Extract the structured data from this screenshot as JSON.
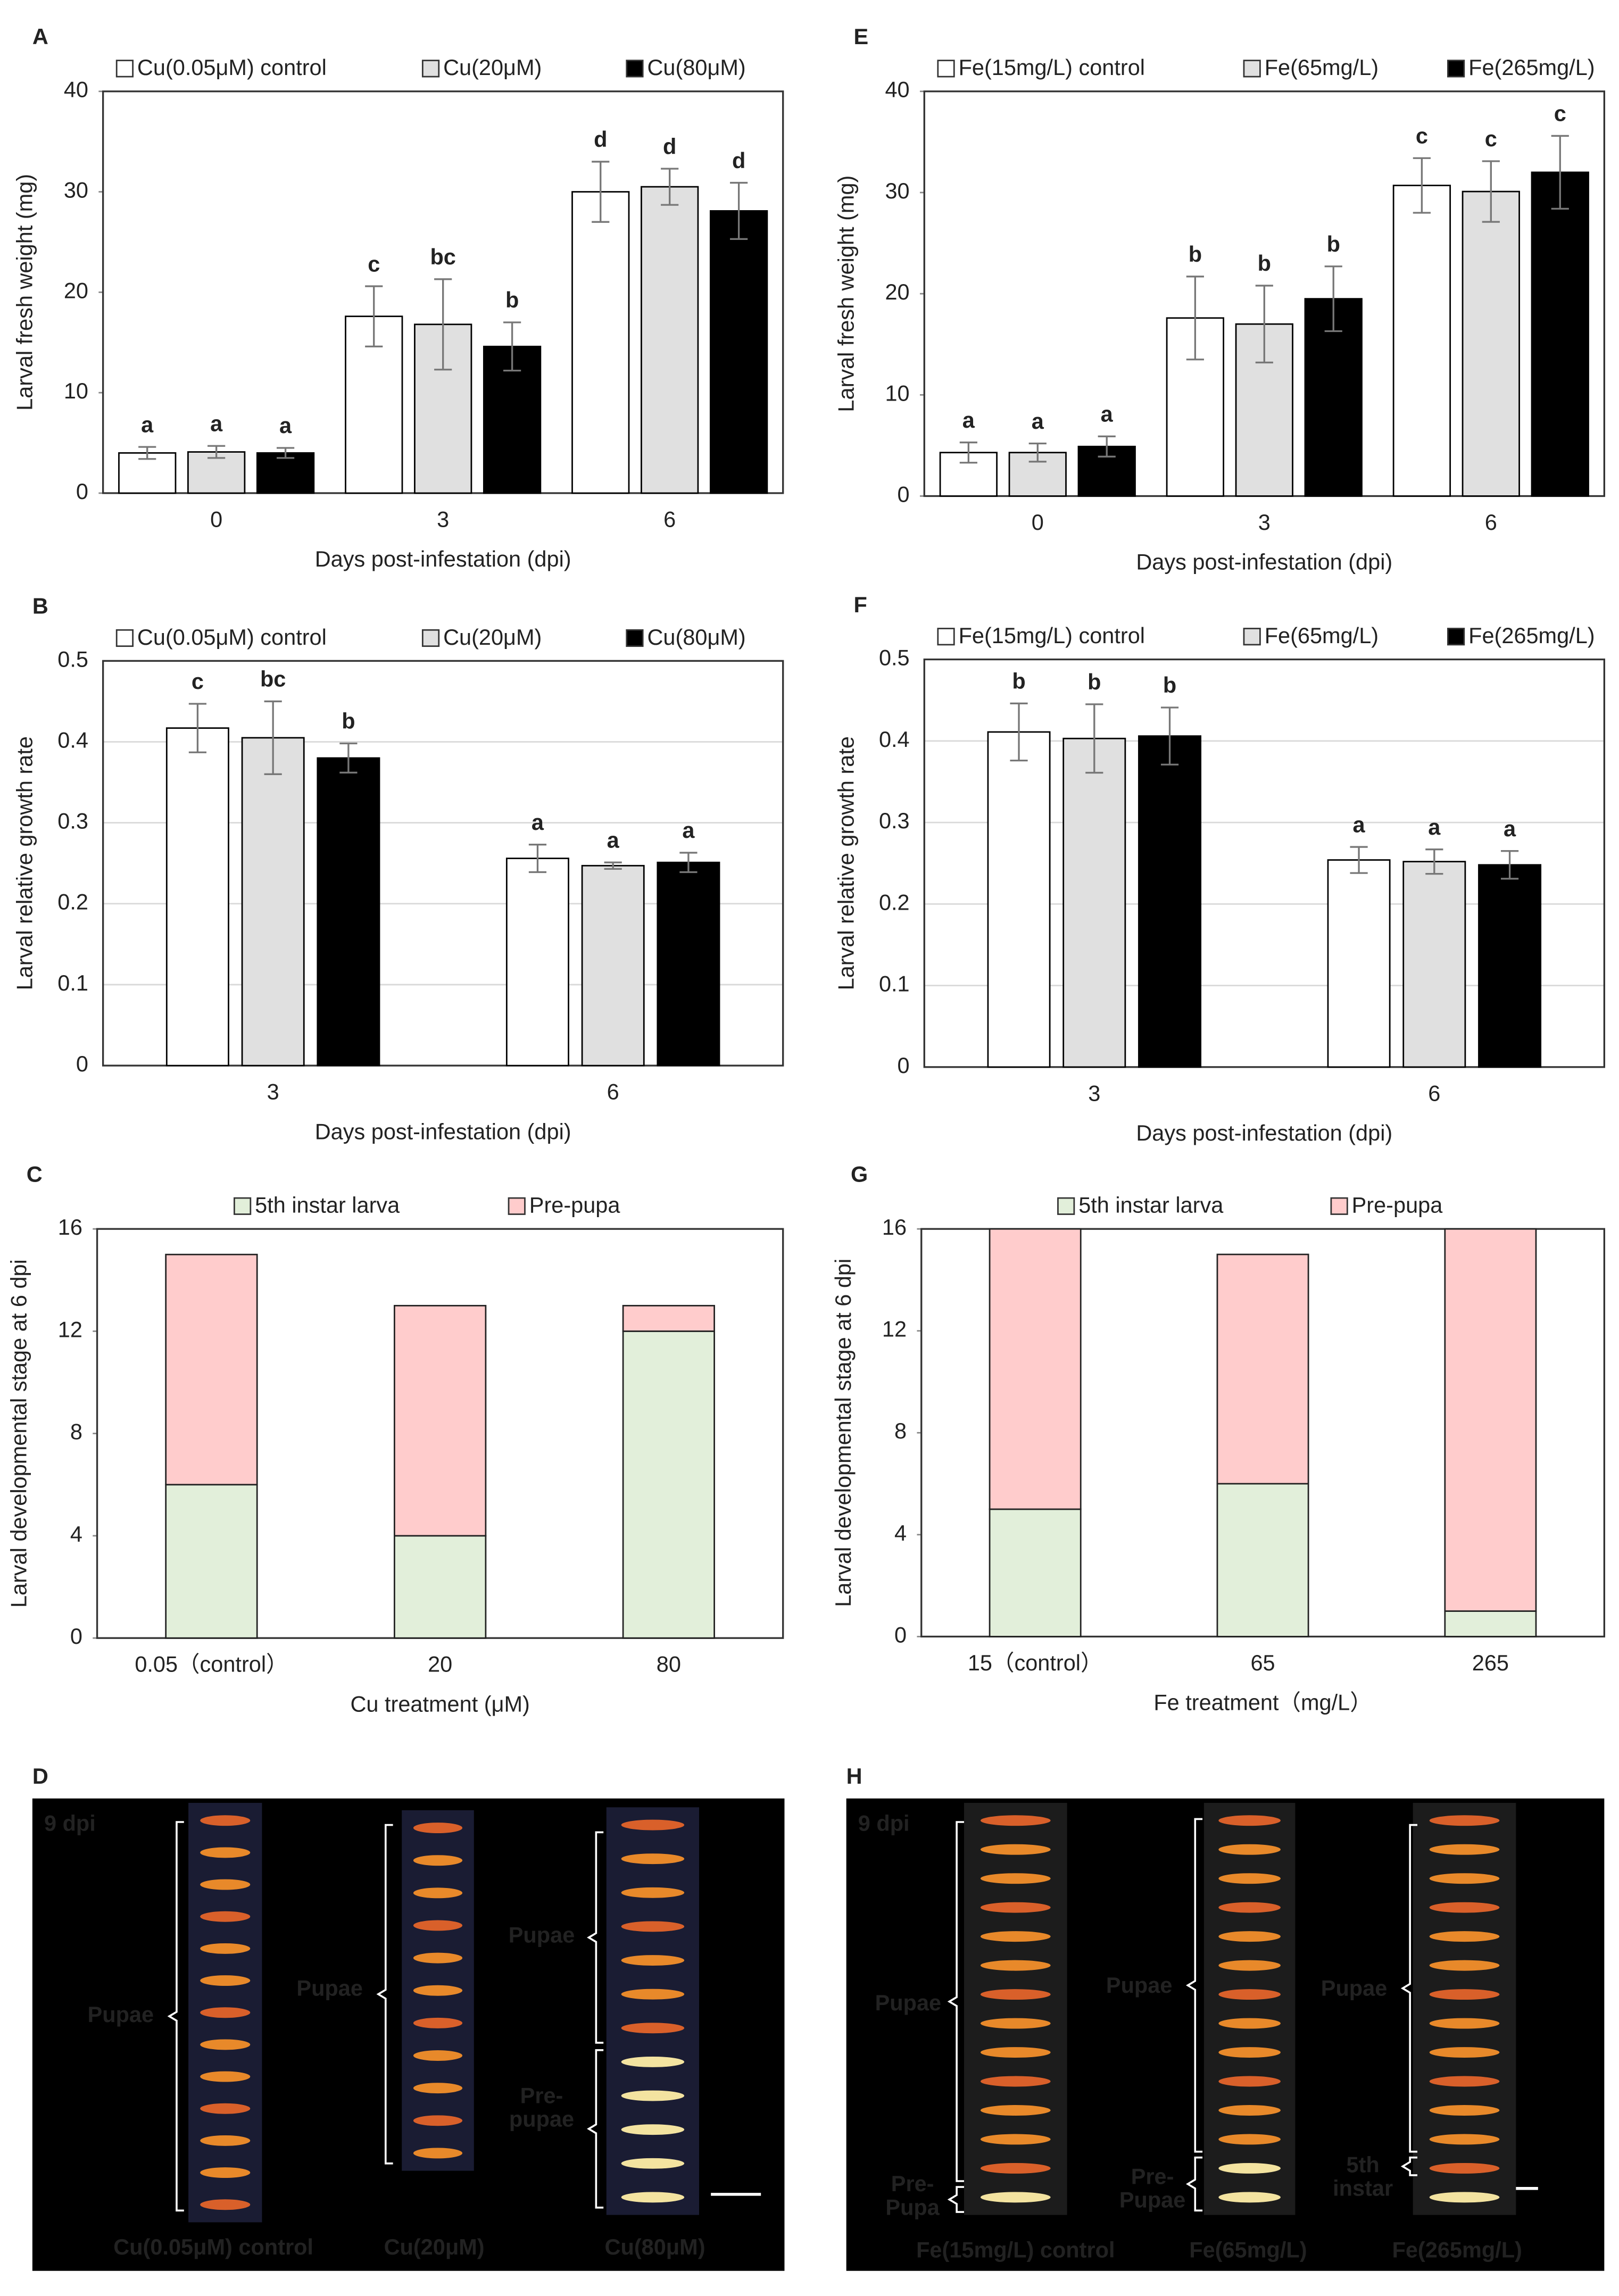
{
  "chart_data": [
    {
      "type": "bar",
      "panel": "A",
      "ylabel": "Larval fresh weight (mg)",
      "xlabel": "Days post-infestation (dpi)",
      "categories": [
        "0",
        "3",
        "6"
      ],
      "ylim": [
        0,
        40
      ],
      "yticks": [
        0,
        10,
        20,
        30,
        40
      ],
      "grid": false,
      "legend": "top",
      "series": [
        {
          "name": "Cu(0.05μM) control",
          "color": "#ffffff",
          "values": [
            4.0,
            17.6,
            30.0
          ],
          "errors": [
            0.6,
            3.0,
            3.0
          ],
          "letters": [
            "a",
            "c",
            "d"
          ]
        },
        {
          "name": "Cu(20μM)",
          "color": "#e0e0e0",
          "values": [
            4.1,
            16.8,
            30.5
          ],
          "errors": [
            0.6,
            4.5,
            1.8
          ],
          "letters": [
            "a",
            "bc",
            "d"
          ]
        },
        {
          "name": "Cu(80μM)",
          "color": "#000000",
          "values": [
            4.0,
            14.6,
            28.1
          ],
          "errors": [
            0.5,
            2.4,
            2.8
          ],
          "letters": [
            "a",
            "b",
            "d"
          ]
        }
      ]
    },
    {
      "type": "bar",
      "panel": "B",
      "ylabel": "Larval relative growth rate",
      "xlabel": "Days post-infestation (dpi)",
      "categories": [
        "3",
        "6"
      ],
      "ylim": [
        0,
        0.5
      ],
      "yticks": [
        0,
        0.1,
        0.2,
        0.3,
        0.4,
        0.5
      ],
      "grid": true,
      "legend": "top",
      "series": [
        {
          "name": "Cu(0.05μM) control",
          "color": "#ffffff",
          "values": [
            0.417,
            0.256
          ],
          "errors": [
            0.03,
            0.017
          ],
          "letters": [
            "c",
            "a"
          ]
        },
        {
          "name": "Cu(20μM)",
          "color": "#e0e0e0",
          "values": [
            0.405,
            0.247
          ],
          "errors": [
            0.045,
            0.004
          ],
          "letters": [
            "bc",
            "a"
          ]
        },
        {
          "name": "Cu(80μM)",
          "color": "#000000",
          "values": [
            0.38,
            0.251
          ],
          "errors": [
            0.018,
            0.012
          ],
          "letters": [
            "b",
            "a"
          ]
        }
      ]
    },
    {
      "type": "stacked_bar",
      "panel": "C",
      "ylabel": "Larval developmental stage at 6 dpi",
      "xlabel": "Cu treatment (μM)",
      "categories": [
        "0.05（control）",
        "20",
        "80"
      ],
      "ylim": [
        0,
        16
      ],
      "yticks": [
        0,
        4,
        8,
        12,
        16
      ],
      "grid": false,
      "legend": "top",
      "series": [
        {
          "name": "5th instar larva",
          "color": "#e2efda",
          "values": [
            6,
            4,
            12
          ]
        },
        {
          "name": "Pre-pupa",
          "color": "#ffcccc",
          "values": [
            9,
            9,
            1
          ]
        }
      ]
    },
    {
      "type": "bar",
      "panel": "E",
      "ylabel": "Larval fresh weight (mg)",
      "xlabel": "Days post-infestation (dpi)",
      "categories": [
        "0",
        "3",
        "6"
      ],
      "ylim": [
        0,
        40
      ],
      "yticks": [
        0,
        10,
        20,
        30,
        40
      ],
      "grid": false,
      "legend": "top",
      "series": [
        {
          "name": "Fe(15mg/L) control",
          "color": "#ffffff",
          "values": [
            4.3,
            17.6,
            30.7
          ],
          "errors": [
            1.0,
            4.1,
            2.7
          ],
          "letters": [
            "a",
            "b",
            "c"
          ]
        },
        {
          "name": "Fe(65mg/L)",
          "color": "#e0e0e0",
          "values": [
            4.3,
            17.0,
            30.1
          ],
          "errors": [
            0.9,
            3.8,
            3.0
          ],
          "letters": [
            "a",
            "b",
            "c"
          ]
        },
        {
          "name": "Fe(265mg/L)",
          "color": "#000000",
          "values": [
            4.9,
            19.5,
            32.0
          ],
          "errors": [
            1.0,
            3.2,
            3.6
          ],
          "letters": [
            "a",
            "b",
            "c"
          ]
        }
      ]
    },
    {
      "type": "bar",
      "panel": "F",
      "ylabel": "Larval relative growth rate",
      "xlabel": "Days post-infestation (dpi)",
      "categories": [
        "3",
        "6"
      ],
      "ylim": [
        0,
        0.5
      ],
      "yticks": [
        0,
        0.1,
        0.2,
        0.3,
        0.4,
        0.5
      ],
      "grid": true,
      "legend": "top",
      "series": [
        {
          "name": "Fe(15mg/L) control",
          "color": "#ffffff",
          "values": [
            0.411,
            0.254
          ],
          "errors": [
            0.035,
            0.016
          ],
          "letters": [
            "b",
            "a"
          ]
        },
        {
          "name": "Fe(65mg/L)",
          "color": "#e0e0e0",
          "values": [
            0.403,
            0.252
          ],
          "errors": [
            0.042,
            0.015
          ],
          "letters": [
            "b",
            "a"
          ]
        },
        {
          "name": "Fe(265mg/L)",
          "color": "#000000",
          "values": [
            0.406,
            0.248
          ],
          "errors": [
            0.035,
            0.017
          ],
          "letters": [
            "b",
            "a"
          ]
        }
      ]
    },
    {
      "type": "stacked_bar",
      "panel": "G",
      "ylabel": "Larval developmental stage at 6 dpi",
      "xlabel": "Fe treatment（mg/L）",
      "categories": [
        "15（control）",
        "65",
        "265"
      ],
      "ylim": [
        0,
        16
      ],
      "yticks": [
        0,
        4,
        8,
        12,
        16
      ],
      "grid": false,
      "legend": "top",
      "series": [
        {
          "name": "5th instar larva",
          "color": "#e2efda",
          "values": [
            5,
            6,
            1
          ]
        },
        {
          "name": "Pre-pupa",
          "color": "#ffcccc",
          "values": [
            11,
            9,
            15
          ]
        }
      ]
    }
  ],
  "photo_panels": [
    {
      "panel": "D",
      "time": "9 dpi",
      "columns": [
        {
          "label": "Cu(0.05μM) control",
          "groups": [
            [
              "Pupae"
            ]
          ]
        },
        {
          "label": "Cu(20μM)",
          "groups": [
            [
              "Pupae"
            ]
          ]
        },
        {
          "label": "Cu(80μM)",
          "groups": [
            [
              "Pupae"
            ],
            [
              "Pre-",
              "pupae"
            ]
          ]
        }
      ]
    },
    {
      "panel": "H",
      "time": "9 dpi",
      "columns": [
        {
          "label": "Fe(15mg/L) control",
          "groups": [
            [
              "Pupae"
            ],
            [
              "Pre-",
              "Pupa"
            ]
          ]
        },
        {
          "label": "Fe(65mg/L)",
          "groups": [
            [
              "Pupae"
            ],
            [
              "Pre-",
              "Pupae"
            ]
          ]
        },
        {
          "label": "Fe(265mg/L)",
          "groups": [
            [
              "Pupae"
            ],
            [
              "5th",
              "instar"
            ]
          ]
        }
      ]
    }
  ]
}
